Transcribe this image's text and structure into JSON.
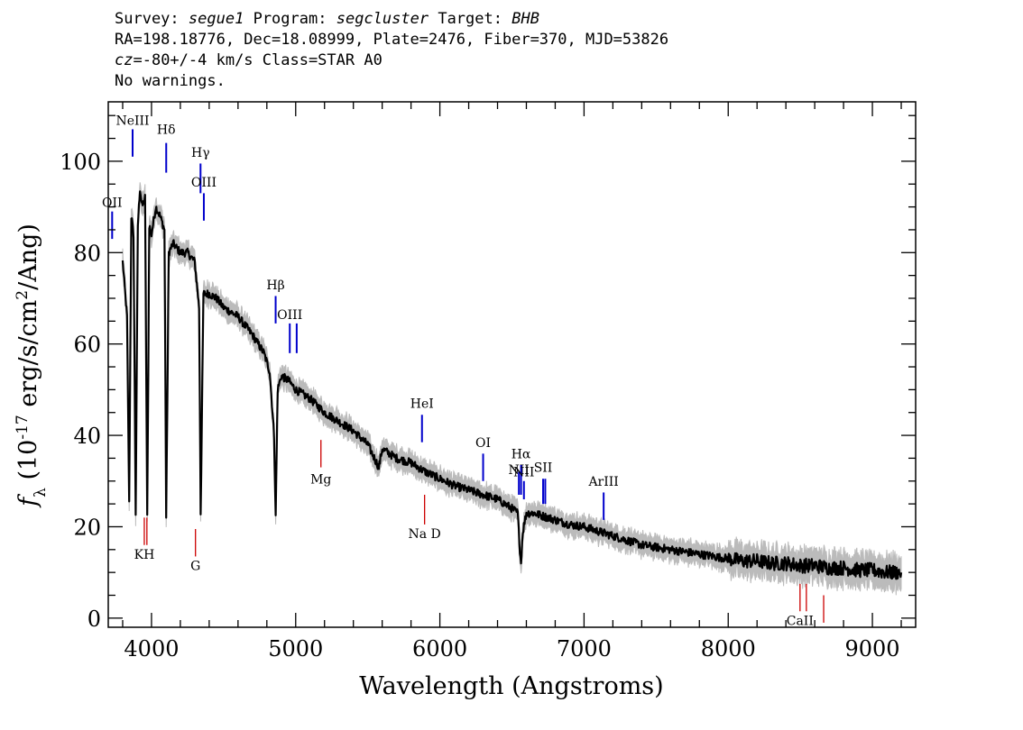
{
  "header": {
    "survey_label": "Survey:",
    "survey": "segue1",
    "program_label": "Program:",
    "program": "segcluster",
    "target_label": "Target:",
    "target": "BHB",
    "line2": "RA=198.18776, Dec=18.08999, Plate=2476, Fiber=370, MJD=53826",
    "cz_label": "cz",
    "cz_value": "=-80+/-4 km/s Class=STAR A0",
    "line4": "No warnings."
  },
  "chart_data": {
    "type": "line",
    "xlabel": "Wavelength (Angstroms)",
    "ylabel": "f_λ (10^-17 erg/s/cm^2/Ang)",
    "xlim": [
      3700,
      9300
    ],
    "ylim": [
      -2,
      113
    ],
    "x_ticks": [
      4000,
      5000,
      6000,
      7000,
      8000,
      9000
    ],
    "y_ticks": [
      0,
      20,
      40,
      60,
      80,
      100
    ],
    "grid": false,
    "colors": {
      "flux": "#000000",
      "error": "#bbbbbb",
      "emission": "#0000cc",
      "absorption": "#cc0000"
    },
    "series": [
      {
        "name": "flux",
        "x": [
          3800,
          3830,
          3845,
          3860,
          3875,
          3890,
          3905,
          3920,
          3935,
          3955,
          3970,
          3985,
          4000,
          4030,
          4060,
          4090,
          4102,
          4120,
          4150,
          4200,
          4250,
          4300,
          4330,
          4341,
          4360,
          4400,
          4450,
          4500,
          4600,
          4700,
          4780,
          4820,
          4850,
          4861,
          4875,
          4900,
          4950,
          5000,
          5100,
          5200,
          5300,
          5400,
          5500,
          5577,
          5600,
          5700,
          5800,
          5900,
          6000,
          6100,
          6200,
          6300,
          6400,
          6500,
          6540,
          6555,
          6563,
          6575,
          6600,
          6650,
          6700,
          6800,
          6900,
          7000,
          7100,
          7200,
          7300,
          7400,
          7500,
          7600,
          7700,
          7800,
          7900,
          8000,
          8100,
          8200,
          8300,
          8400,
          8500,
          8600,
          8700,
          8800,
          8900,
          9000,
          9100,
          9200
        ],
        "y": [
          78,
          66,
          25,
          88,
          84,
          23,
          86,
          94,
          90,
          92,
          22,
          86,
          84,
          90,
          88,
          85,
          22,
          80,
          82,
          80,
          80,
          78,
          68,
          23,
          71,
          71,
          70,
          68,
          66,
          62,
          58,
          54,
          40,
          22,
          50,
          53,
          52,
          50,
          48,
          45,
          43,
          41,
          38,
          33,
          37,
          35,
          34,
          32,
          30.5,
          29,
          28,
          27,
          26,
          24,
          23,
          15,
          12,
          19,
          23,
          23,
          22.5,
          21.5,
          20.5,
          20,
          19,
          18,
          17,
          16,
          15.5,
          15,
          14.5,
          14,
          13.5,
          13,
          12.5,
          12.5,
          12,
          12,
          11.5,
          11.5,
          11,
          11,
          10.5,
          10.5,
          10,
          10
        ]
      }
    ],
    "emission_lines": [
      {
        "label": "OII",
        "x": 3727,
        "y0": 83,
        "y1": 89,
        "label_y": 90
      },
      {
        "label": "NeIII",
        "x": 3869,
        "y0": 101,
        "y1": 107,
        "label_y": 108
      },
      {
        "label": "Hδ",
        "x": 4102,
        "y0": 97.5,
        "y1": 104,
        "label_y": 106
      },
      {
        "label": "Hγ",
        "x": 4340,
        "y0": 93,
        "y1": 99.5,
        "label_y": 101
      },
      {
        "label": "OIII",
        "x": 4363,
        "y0": 87,
        "y1": 93,
        "label_y": 94.5
      },
      {
        "label": "Hβ",
        "x": 4861,
        "y0": 64.5,
        "y1": 70.5,
        "label_y": 72
      },
      {
        "label": "OIII",
        "x": 4959,
        "y0": 58,
        "y1": 64.5,
        "label_y": 65.5
      },
      {
        "label": "",
        "x": 5007,
        "y0": 58,
        "y1": 64.5,
        "label_y": 65.5
      },
      {
        "label": "HeI",
        "x": 5876,
        "y0": 38.5,
        "y1": 44.5,
        "label_y": 46
      },
      {
        "label": "OI",
        "x": 6300,
        "y0": 30,
        "y1": 36,
        "label_y": 37.5
      },
      {
        "label": "NII",
        "x": 6548,
        "y0": 27,
        "y1": 32,
        "label_y": 31.5
      },
      {
        "label": "Hα",
        "x": 6563,
        "y0": 27,
        "y1": 33.5,
        "label_y": 35
      },
      {
        "label": "NII",
        "x": 6583,
        "y0": 26,
        "y1": 30,
        "label_y": 31
      },
      {
        "label": "SII",
        "x": 6716,
        "y0": 25,
        "y1": 30.5,
        "label_y": 32
      },
      {
        "label": "",
        "x": 6731,
        "y0": 25,
        "y1": 30.5,
        "label_y": 32
      },
      {
        "label": "ArIII",
        "x": 7136,
        "y0": 21.5,
        "y1": 27.5,
        "label_y": 29
      }
    ],
    "absorption_lines": [
      {
        "label": "KH",
        "x": 3950,
        "y0": 16,
        "y1": 22,
        "label_y": 13
      },
      {
        "label": "",
        "x": 3968,
        "y0": 16,
        "y1": 22,
        "label_y": 13
      },
      {
        "label": "G",
        "x": 4305,
        "y0": 13.5,
        "y1": 19.5,
        "label_y": 10.5
      },
      {
        "label": "Mg",
        "x": 5175,
        "y0": 33,
        "y1": 39,
        "label_y": 29.5
      },
      {
        "label": "Na D",
        "x": 5894,
        "y0": 20.5,
        "y1": 27,
        "label_y": 17.5
      },
      {
        "label": "CaII",
        "x": 8498,
        "y0": 1.5,
        "y1": 7.5,
        "label_y": -1.5
      },
      {
        "label": "",
        "x": 8542,
        "y0": 1.5,
        "y1": 7.5,
        "label_y": -1.5
      },
      {
        "label": "",
        "x": 8662,
        "y0": -1,
        "y1": 5,
        "label_y": -1.5
      }
    ]
  }
}
